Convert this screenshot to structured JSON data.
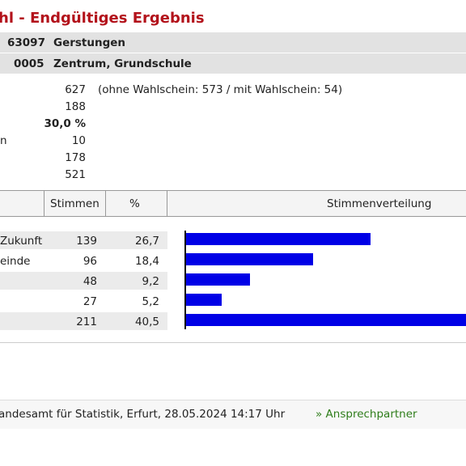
{
  "header": {
    "title": "hl - Endgültiges Ergebnis",
    "municipality_code": "63097",
    "municipality_name": "Gerstungen",
    "district_code": "0005",
    "district_name": "Zentrum, Grundschule"
  },
  "stats": {
    "row1_value": "627",
    "row1_note": "(ohne Wahlschein: 573 / mit Wahlschein: 54)",
    "row2_value": "188",
    "row3_value": "30,0 %",
    "row4_label_fragment": "n",
    "row4_value": "10",
    "row5_value": "178",
    "row6_value": "521"
  },
  "table": {
    "columns": [
      "Stimmen",
      "%",
      "Stimmenverteilung"
    ],
    "rows": [
      {
        "label": "Zukunft",
        "votes": "139",
        "percent": "26,7",
        "pct_value": 26.7
      },
      {
        "label": "einde",
        "votes": "96",
        "percent": "18,4",
        "pct_value": 18.4
      },
      {
        "label": "",
        "votes": "48",
        "percent": "9,2",
        "pct_value": 9.2
      },
      {
        "label": "",
        "votes": "27",
        "percent": "5,2",
        "pct_value": 5.2
      },
      {
        "label": "",
        "votes": "211",
        "percent": "40,5",
        "pct_value": 40.5
      }
    ]
  },
  "footer": {
    "source_text": "andesamt für Statistik, Erfurt, 28.05.2024 14:17 Uhr",
    "contact_link": "» Ansprechpartner"
  },
  "colors": {
    "title": "#b3121b",
    "bar": "#0000e6",
    "link": "#2e7d1a"
  }
}
